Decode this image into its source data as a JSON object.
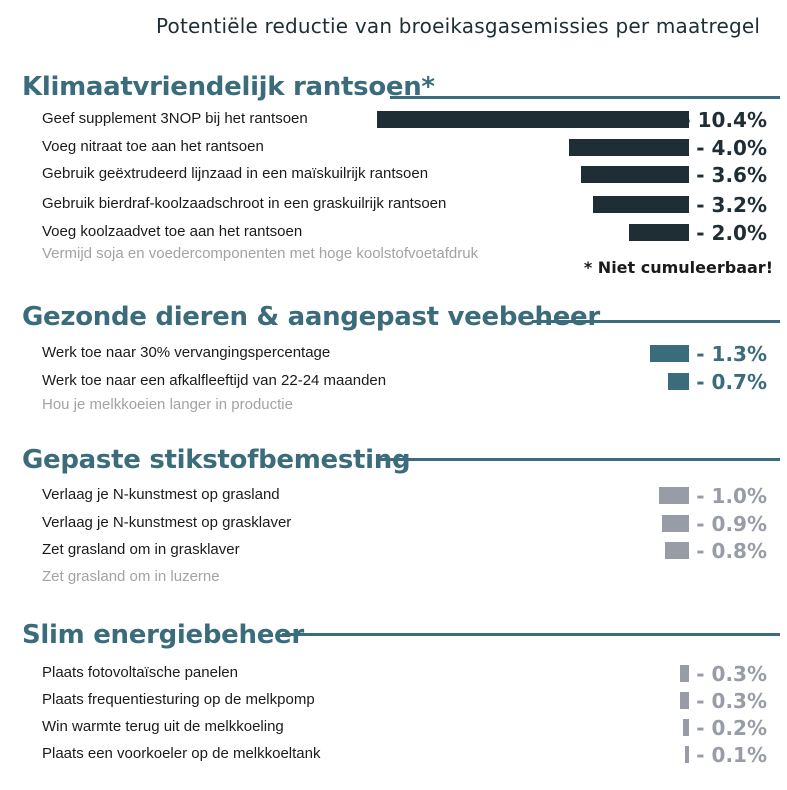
{
  "title": "Potentiële reductie van broeikasgasemissies per maatregel",
  "colors": {
    "dark": "#1f2e35",
    "teal": "#3a6c7b",
    "grey": "#979ca6",
    "note": "#a3a3a3"
  },
  "chart_data": [
    {
      "type": "bar",
      "title": "Klimaatvriendelijk rantsoen*",
      "color": "#1f2e35",
      "categories": [
        "Geef supplement 3NOP bij het rantsoen",
        "Voeg nitraat toe aan het rantsoen",
        "Gebruik geëxtrudeerd lijnzaad in een maïskuilrijk rantsoen",
        "Gebruik bierdraf-koolzaadschroot in een graskuilrijk rantsoen",
        "Voeg koolzaadvet toe aan het rantsoen"
      ],
      "values": [
        10.4,
        4.0,
        3.6,
        3.2,
        2.0
      ],
      "value_labels": [
        "- 10.4%",
        "- 4.0%",
        "- 3.6%",
        "- 3.2%",
        "- 2.0%"
      ],
      "note": "Vermijd soja en voedercomponenten met hoge koolstofvoetafdruk",
      "footnote": "* Niet cumuleerbaar!"
    },
    {
      "type": "bar",
      "title": "Gezonde dieren & aangepast veebeheer",
      "color": "#3a6c7b",
      "categories": [
        "Werk toe naar 30% vervangingspercentage",
        "Werk toe naar een afkalfleeftijd van 22-24 maanden"
      ],
      "values": [
        1.3,
        0.7
      ],
      "value_labels": [
        "- 1.3%",
        "- 0.7%"
      ],
      "note": "Hou je melkkoeien langer in productie"
    },
    {
      "type": "bar",
      "title": "Gepaste stikstofbemesting",
      "color": "#979ca6",
      "categories": [
        "Verlaag je N-kunstmest op grasland",
        "Verlaag je N-kunstmest op grasklaver",
        "Zet grasland om in grasklaver"
      ],
      "values": [
        1.0,
        0.9,
        0.8
      ],
      "value_labels": [
        "- 1.0%",
        "- 0.9%",
        "- 0.8%"
      ],
      "note": "Zet grasland om in luzerne"
    },
    {
      "type": "bar",
      "title": "Slim energiebeheer",
      "color": "#979ca6",
      "categories": [
        "Plaats fotovoltaïsche panelen",
        "Plaats frequentiesturing op de melkpomp",
        "Win warmte terug uit de melkkoeling",
        "Plaats een voorkoeler op de melkkoeltank"
      ],
      "values": [
        0.3,
        0.3,
        0.2,
        0.1
      ],
      "value_labels": [
        "- 0.3%",
        "- 0.3%",
        "- 0.2%",
        "- 0.1%"
      ]
    }
  ]
}
